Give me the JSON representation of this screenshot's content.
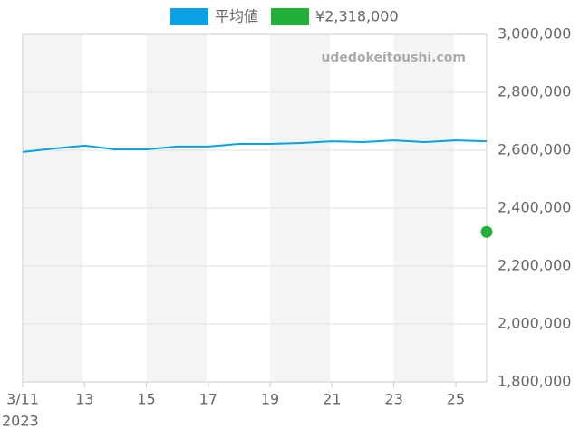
{
  "chart_data": {
    "type": "line",
    "watermark": "udedokeitoushi.com",
    "x_year_label": "2023",
    "xlim": [
      11,
      26
    ],
    "xticks": [
      {
        "value": 11,
        "label": "3/11"
      },
      13,
      15,
      17,
      19,
      21,
      23,
      25
    ],
    "ylim": [
      1800000,
      3000000
    ],
    "yticks": [
      {
        "value": 1800000,
        "label": "1,800,000"
      },
      {
        "value": 2000000,
        "label": "2,000,000"
      },
      {
        "value": 2200000,
        "label": "2,200,000"
      },
      {
        "value": 2400000,
        "label": "2,400,000"
      },
      {
        "value": 2600000,
        "label": "2,600,000"
      },
      {
        "value": 2800000,
        "label": "2,800,000"
      },
      {
        "value": 3000000,
        "label": "3,000,000"
      }
    ],
    "grid": true,
    "y_axis_side": "right",
    "series": [
      {
        "name": "平均値",
        "color": "#0aa0e6",
        "style": "line",
        "x": [
          11,
          12,
          13,
          14,
          15,
          16,
          17,
          18,
          19,
          20,
          21,
          22,
          23,
          24,
          25,
          26
        ],
        "values": [
          2594000,
          2606000,
          2616000,
          2603000,
          2603000,
          2613000,
          2613000,
          2622000,
          2622000,
          2625000,
          2631000,
          2628000,
          2634000,
          2628000,
          2634000,
          2631000
        ]
      },
      {
        "name": "¥2,318,000",
        "color": "#22b03a",
        "style": "point",
        "x": [
          26
        ],
        "values": [
          2318000
        ]
      }
    ]
  }
}
